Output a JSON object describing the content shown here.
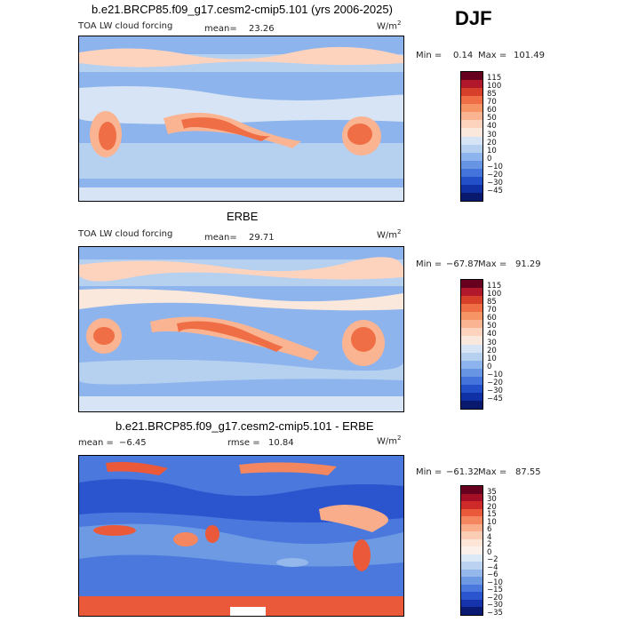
{
  "season": "DJF",
  "units": "W/m",
  "units_exp": "2",
  "panels": [
    {
      "title": "b.e21.BRCP85.f09_g17.cesm2-cmip5.101 (yrs 2006-2025)",
      "left_label": "TOA LW cloud forcing",
      "stat_label": "mean=",
      "stat_value": "23.26",
      "min_label": "Min =",
      "min_value": "0.14",
      "max_label": "Max =",
      "max_value": "101.49",
      "colorbar_labels": [
        "115",
        "100",
        "85",
        "70",
        "60",
        "50",
        "40",
        "30",
        "20",
        "10",
        "0",
        "−10",
        "−20",
        "−30",
        "−45"
      ]
    },
    {
      "title": "ERBE",
      "left_label": "TOA LW cloud forcing",
      "stat_label": "mean=",
      "stat_value": "29.71",
      "min_label": "Min =",
      "min_value": "−67.87",
      "max_label": "Max =",
      "max_value": "91.29",
      "colorbar_labels": [
        "115",
        "100",
        "85",
        "70",
        "60",
        "50",
        "40",
        "30",
        "20",
        "10",
        "0",
        "−10",
        "−20",
        "−30",
        "−45"
      ]
    },
    {
      "title": "b.e21.BRCP85.f09_g17.cesm2-cmip5.101 - ERBE",
      "mean_label": "mean =",
      "mean_value": "−6.45",
      "rmse_label": "rmse =",
      "rmse_value": "10.84",
      "min_label": "Min =",
      "min_value": "−61.32",
      "max_label": "Max =",
      "max_value": "87.55",
      "colorbar_labels": [
        "35",
        "30",
        "20",
        "15",
        "10",
        "6",
        "4",
        "2",
        "0",
        "−2",
        "−4",
        "−6",
        "−10",
        "−15",
        "−20",
        "−30",
        "−35"
      ]
    }
  ],
  "colors": {
    "abs_scale": [
      "#67001f",
      "#b2182b",
      "#d6402b",
      "#ef6e45",
      "#f79466",
      "#fbb491",
      "#fdd3be",
      "#fbe8dc",
      "#d6e4f5",
      "#b6d0f0",
      "#8db4ec",
      "#6795e3",
      "#4373db",
      "#2350c9",
      "#1030a6",
      "#08196e"
    ],
    "diff_scale": [
      "#67001f",
      "#a50f26",
      "#cf2a2a",
      "#ea5a3a",
      "#f48660",
      "#f9ad8a",
      "#fccdb4",
      "#fde6d8",
      "#fbf1ea",
      "#dbe8f6",
      "#bbd3f1",
      "#94b8ec",
      "#6e9ae4",
      "#4a78dc",
      "#2a55cf",
      "#1533aa",
      "#081a72"
    ]
  }
}
